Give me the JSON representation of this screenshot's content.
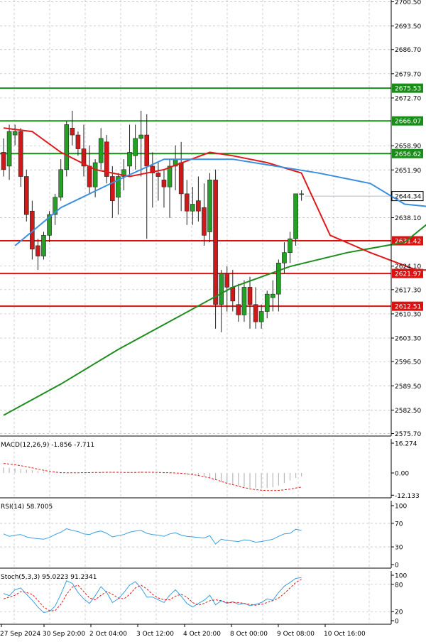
{
  "chart_data": [
    {
      "type": "candlestick",
      "panel": "price",
      "y_ticks": [
        "2700.50",
        "2693.50",
        "2686.70",
        "2679.70",
        "2672.70",
        "2658.90",
        "2651.90",
        "2638.10",
        "2624.10",
        "2617.30",
        "2610.30",
        "2603.30",
        "2596.50",
        "2589.50",
        "2582.50",
        "2575.70"
      ],
      "ylim": [
        2575.7,
        2700.5
      ],
      "levels": [
        {
          "label": "2675.53",
          "value": 2675.53,
          "color": "#1a8c1a"
        },
        {
          "label": "2666.07",
          "value": 2666.07,
          "color": "#1a8c1a"
        },
        {
          "label": "2656.62",
          "value": 2656.62,
          "color": "#1a8c1a"
        },
        {
          "label": "2631.42",
          "value": 2631.42,
          "color": "#e01010"
        },
        {
          "label": "2621.97",
          "value": 2621.97,
          "color": "#e01010"
        },
        {
          "label": "2612.51",
          "value": 2612.51,
          "color": "#e01010"
        }
      ],
      "current_price": {
        "label": "2644.34",
        "value": 2644.34
      },
      "candles": [
        [
          2657,
          2661,
          2650,
          2652
        ],
        [
          2653,
          2665,
          2649,
          2663
        ],
        [
          2662,
          2665,
          2659,
          2663
        ],
        [
          2663,
          2664,
          2647,
          2650
        ],
        [
          2650,
          2652,
          2637,
          2639
        ],
        [
          2640,
          2643,
          2626,
          2629
        ],
        [
          2630,
          2632,
          2623,
          2627
        ],
        [
          2627,
          2634,
          2626,
          2633
        ],
        [
          2633,
          2640,
          2631,
          2639
        ],
        [
          2639,
          2645,
          2636,
          2644
        ],
        [
          2644,
          2655,
          2643,
          2652
        ],
        [
          2652,
          2666,
          2650,
          2665
        ],
        [
          2664,
          2669,
          2659,
          2662
        ],
        [
          2662,
          2663,
          2656,
          2658
        ],
        [
          2658,
          2665,
          2650,
          2653
        ],
        [
          2653,
          2659,
          2645,
          2647
        ],
        [
          2647,
          2655,
          2644,
          2654
        ],
        [
          2654,
          2664,
          2652,
          2661
        ],
        [
          2660,
          2662,
          2648,
          2650
        ],
        [
          2650,
          2653,
          2638,
          2643
        ],
        [
          2644,
          2651,
          2639,
          2650
        ],
        [
          2650,
          2655,
          2646,
          2652
        ],
        [
          2653,
          2665,
          2650,
          2657
        ],
        [
          2656,
          2665,
          2652,
          2661
        ],
        [
          2661,
          2669,
          2650,
          2662
        ],
        [
          2662,
          2668,
          2632,
          2653
        ],
        [
          2653,
          2657,
          2641,
          2651
        ],
        [
          2651,
          2654,
          2643,
          2650
        ],
        [
          2649,
          2652,
          2641,
          2647
        ],
        [
          2647,
          2655,
          2638,
          2653
        ],
        [
          2653,
          2659,
          2646,
          2655
        ],
        [
          2654,
          2660,
          2640,
          2645
        ],
        [
          2645,
          2649,
          2636,
          2640
        ],
        [
          2640,
          2647,
          2636,
          2642
        ],
        [
          2643,
          2650,
          2637,
          2640
        ],
        [
          2641,
          2648,
          2630,
          2633
        ],
        [
          2634,
          2651,
          2631,
          2649
        ],
        [
          2649,
          2652,
          2606,
          2613
        ],
        [
          2613,
          2623,
          2605,
          2622
        ],
        [
          2622,
          2624,
          2611,
          2618
        ],
        [
          2618,
          2623,
          2611,
          2614
        ],
        [
          2613,
          2619,
          2608,
          2610
        ],
        [
          2610,
          2620,
          2608,
          2618
        ],
        [
          2618,
          2621,
          2606,
          2613
        ],
        [
          2613,
          2618,
          2606,
          2608
        ],
        [
          2608,
          2613,
          2606,
          2611
        ],
        [
          2611,
          2617,
          2609,
          2616
        ],
        [
          2615,
          2620,
          2611,
          2616
        ],
        [
          2616,
          2626,
          2611,
          2625
        ],
        [
          2625,
          2631,
          2622,
          2628
        ],
        [
          2628,
          2634,
          2625,
          2632
        ],
        [
          2632,
          2645,
          2630,
          2645
        ],
        [
          2645,
          2646,
          2643,
          2645
        ]
      ],
      "ma_blue": [
        [
          2,
          2630
        ],
        [
          10,
          2641
        ],
        [
          20,
          2649
        ],
        [
          28,
          2655
        ],
        [
          40,
          2655
        ],
        [
          55,
          2651
        ],
        [
          64,
          2648
        ],
        [
          70,
          2642
        ],
        [
          76,
          2641
        ]
      ],
      "ma_red": [
        [
          0,
          2664
        ],
        [
          5,
          2663
        ],
        [
          10,
          2657
        ],
        [
          16,
          2652
        ],
        [
          22,
          2650
        ],
        [
          28,
          2652
        ],
        [
          36,
          2657
        ],
        [
          40,
          2656
        ],
        [
          46,
          2654
        ],
        [
          52,
          2651
        ],
        [
          57,
          2633
        ],
        [
          64,
          2628
        ],
        [
          72,
          2623
        ],
        [
          76,
          2623
        ]
      ],
      "ma_green": [
        [
          0,
          2581
        ],
        [
          10,
          2590
        ],
        [
          20,
          2600
        ],
        [
          30,
          2609
        ],
        [
          40,
          2618
        ],
        [
          50,
          2624
        ],
        [
          60,
          2628
        ],
        [
          70,
          2631
        ],
        [
          76,
          2639
        ]
      ],
      "x_tick_labels": [
        "27 Sep 2024",
        "30 Sep 20:00",
        "2 Oct 04:00",
        "3 Oct 12:00",
        "4 Oct 20:00",
        "8 Oct 00:00",
        "9 Oct 08:00",
        "10 Oct 16:00"
      ]
    },
    {
      "type": "bar",
      "panel": "macd",
      "title": "MACD(12,26,9) -1.856 -7.711",
      "y_ticks": [
        "16.274",
        "0.00",
        "-12.133"
      ],
      "ylim": [
        -12.133,
        16.274
      ],
      "histogram": [
        3.0,
        2.8,
        2.5,
        2.2,
        1.8,
        1.4,
        1.0,
        0.7,
        0.4,
        0.1,
        -0.2,
        -0.1,
        0.1,
        0.2,
        0.1,
        -0.1,
        0.1,
        0.3,
        0.4,
        0.3,
        0.2,
        0.1,
        0.3,
        0.6,
        0.8,
        0.5,
        0.3,
        0.0,
        -0.2,
        -0.3,
        -0.2,
        -0.4,
        -0.7,
        -1.0,
        -1.4,
        -1.9,
        -2.5,
        -3.8,
        -4.8,
        -5.5,
        -6.1,
        -6.8,
        -7.5,
        -8.0,
        -8.3,
        -8.4,
        -8.2,
        -7.8,
        -6.9,
        -5.5,
        -4.1,
        -2.7,
        -1.9
      ],
      "signal": [
        5.2,
        4.9,
        4.5,
        4.0,
        3.4,
        2.8,
        2.1,
        1.5,
        0.9,
        0.5,
        0.2,
        0.1,
        0.1,
        0.1,
        0.2,
        0.2,
        0.3,
        0.3,
        0.4,
        0.4,
        0.4,
        0.3,
        0.3,
        0.3,
        0.4,
        0.4,
        0.4,
        0.3,
        0.2,
        0.1,
        0.0,
        -0.2,
        -0.5,
        -0.9,
        -1.4,
        -2.0,
        -2.7,
        -3.6,
        -4.6,
        -5.6,
        -6.4,
        -7.2,
        -8.0,
        -8.6,
        -9.1,
        -9.4,
        -9.6,
        -9.6,
        -9.5,
        -9.2,
        -8.8,
        -8.2,
        -7.7
      ]
    },
    {
      "type": "line",
      "panel": "rsi",
      "title": "RSI(14) 58.7005",
      "y_ticks": [
        "100",
        "70",
        "30",
        "0"
      ],
      "ylim": [
        0,
        100
      ],
      "values": [
        52,
        48,
        50,
        51,
        47,
        45,
        44,
        43,
        46,
        51,
        55,
        61,
        58,
        56,
        52,
        51,
        55,
        57,
        53,
        47,
        49,
        51,
        55,
        57,
        58,
        53,
        51,
        50,
        48,
        52,
        54,
        50,
        48,
        47,
        46,
        45,
        49,
        35,
        43,
        41,
        40,
        39,
        42,
        41,
        38,
        39,
        41,
        43,
        48,
        52,
        53,
        60,
        58
      ]
    },
    {
      "type": "line",
      "panel": "stoch",
      "title": "Stoch(5,3,3) 95.0223 91.2341",
      "y_ticks": [
        "100",
        "80",
        "20",
        "0"
      ],
      "ylim": [
        0,
        100
      ],
      "k": [
        60,
        55,
        68,
        72,
        58,
        45,
        30,
        18,
        20,
        32,
        58,
        88,
        82,
        62,
        48,
        38,
        55,
        75,
        62,
        40,
        48,
        62,
        78,
        86,
        72,
        52,
        52,
        46,
        40,
        56,
        68,
        54,
        38,
        30,
        38,
        45,
        56,
        35,
        44,
        38,
        42,
        36,
        38,
        33,
        36,
        40,
        48,
        45,
        62,
        76,
        84,
        93,
        95
      ],
      "d": [
        48,
        52,
        56,
        64,
        62,
        58,
        45,
        30,
        22,
        22,
        36,
        58,
        74,
        78,
        64,
        50,
        46,
        56,
        64,
        58,
        50,
        48,
        58,
        72,
        78,
        70,
        58,
        50,
        46,
        46,
        54,
        58,
        52,
        40,
        34,
        38,
        44,
        46,
        44,
        40,
        40,
        40,
        38,
        36,
        34,
        36,
        40,
        44,
        50,
        60,
        72,
        84,
        91
      ]
    }
  ]
}
